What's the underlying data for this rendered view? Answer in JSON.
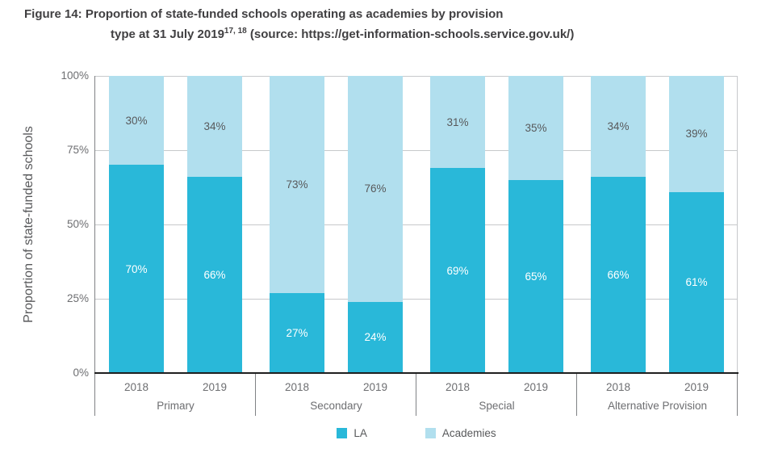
{
  "figure": {
    "title_prefix": "Figure 14: ",
    "title_line1": "Proportion of state-funded schools operating as academies by provision",
    "title_line2_pre": "type at 31 July 2019",
    "title_superscript": "17, 18",
    "title_line2_post": " (source: https://get-information-schools.service.gov.uk/)"
  },
  "chart_data": {
    "type": "bar",
    "stacked": true,
    "ylabel": "Proportion of state-funded schools",
    "ylim": [
      0,
      100
    ],
    "ytick_values": [
      0,
      25,
      50,
      75,
      100
    ],
    "ytick_suffix": "%",
    "grid": true,
    "legend_position": "bottom",
    "series": [
      {
        "name": "LA",
        "color": "#29b8d9",
        "label_color": "#ffffff"
      },
      {
        "name": "Academies",
        "color": "#b1dfee",
        "label_color": "#58595b"
      }
    ],
    "groups": [
      {
        "category": "Primary",
        "bars": [
          {
            "year": "2018",
            "LA": 70,
            "Academies": 30
          },
          {
            "year": "2019",
            "LA": 66,
            "Academies": 34
          }
        ]
      },
      {
        "category": "Secondary",
        "bars": [
          {
            "year": "2018",
            "LA": 27,
            "Academies": 73
          },
          {
            "year": "2019",
            "LA": 24,
            "Academies": 76
          }
        ]
      },
      {
        "category": "Special",
        "bars": [
          {
            "year": "2018",
            "LA": 69,
            "Academies": 31
          },
          {
            "year": "2019",
            "LA": 65,
            "Academies": 35
          }
        ]
      },
      {
        "category": "Alternative Provision",
        "bars": [
          {
            "year": "2018",
            "LA": 66,
            "Academies": 34
          },
          {
            "year": "2019",
            "LA": 61,
            "Academies": 39
          }
        ]
      }
    ]
  }
}
